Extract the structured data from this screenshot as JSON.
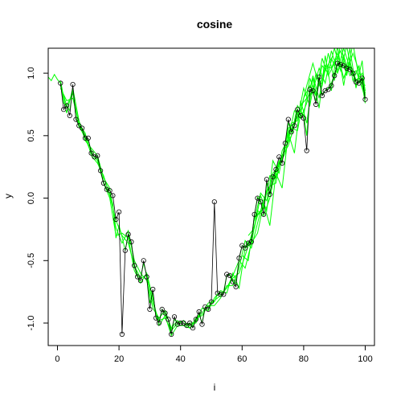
{
  "chart_data": {
    "type": "line",
    "title": "cosine",
    "xlabel": "i",
    "ylabel": "y",
    "xlim": [
      -3,
      103
    ],
    "ylim": [
      -1.18,
      1.2
    ],
    "xticks": [
      0,
      20,
      40,
      60,
      80,
      100
    ],
    "xtick_labels": [
      "0",
      "20",
      "40",
      "60",
      "80",
      "100"
    ],
    "yticks": [
      -1.0,
      -0.5,
      0.0,
      0.5,
      1.0
    ],
    "ytick_labels": [
      "-1.0",
      "-0.5",
      "0.0",
      "0.5",
      "1.0"
    ],
    "colors": {
      "observed": "#000000",
      "bands": "#00ff00"
    },
    "series": [
      {
        "style": "points-and-line",
        "x": [
          1,
          2,
          3,
          4,
          5,
          6,
          7,
          8,
          9,
          10,
          11,
          12,
          13,
          14,
          15,
          16,
          17,
          18,
          19,
          20,
          21,
          22,
          23,
          24,
          25,
          26,
          27,
          28,
          29,
          30,
          31,
          32,
          33,
          34,
          35,
          36,
          37,
          38,
          39,
          40,
          41,
          42,
          43,
          44,
          45,
          46,
          47,
          48,
          49,
          50,
          51,
          52,
          53,
          54,
          55,
          56,
          57,
          58,
          59,
          60,
          61,
          62,
          63,
          64,
          65,
          66,
          67,
          68,
          69,
          70,
          71,
          72,
          73,
          74,
          75,
          76,
          77,
          78,
          79,
          80,
          81,
          82,
          83,
          84,
          85,
          86,
          87,
          88,
          89,
          90,
          91,
          92,
          93,
          94,
          95,
          96,
          97,
          98,
          99,
          100
        ],
        "y": [
          0.92,
          0.71,
          0.74,
          0.66,
          0.91,
          0.63,
          0.58,
          0.56,
          0.48,
          0.48,
          0.36,
          0.33,
          0.34,
          0.22,
          0.12,
          0.07,
          0.06,
          0.02,
          -0.17,
          -0.11,
          -1.09,
          -0.42,
          -0.29,
          -0.35,
          -0.54,
          -0.63,
          -0.66,
          -0.5,
          -0.63,
          -0.89,
          -0.73,
          -0.96,
          -1.0,
          -0.89,
          -0.92,
          -0.97,
          -1.09,
          -0.95,
          -1.01,
          -1.0,
          -1.0,
          -1.02,
          -1.0,
          -1.04,
          -0.97,
          -0.91,
          -1.01,
          -0.87,
          -0.89,
          -0.83,
          -0.03,
          -0.76,
          -0.77,
          -0.77,
          -0.61,
          -0.62,
          -0.67,
          -0.71,
          -0.48,
          -0.38,
          -0.4,
          -0.36,
          -0.35,
          -0.13,
          0.0,
          -0.03,
          -0.13,
          0.15,
          0.03,
          0.17,
          0.23,
          0.33,
          0.28,
          0.44,
          0.63,
          0.53,
          0.58,
          0.71,
          0.66,
          0.64,
          0.38,
          0.87,
          0.86,
          0.75,
          0.97,
          0.82,
          0.86,
          0.87,
          0.9,
          0.98,
          1.08,
          1.07,
          1.06,
          1.04,
          1.03,
          1.0,
          0.93,
          0.92,
          0.96,
          0.79
        ]
      },
      {
        "style": "line",
        "x": [
          -3,
          -2,
          -1,
          0,
          1,
          2,
          3,
          4,
          5,
          6,
          7,
          8,
          9,
          10,
          11,
          12,
          13,
          14,
          15,
          16,
          17,
          18,
          19,
          20,
          21,
          22,
          23,
          24,
          25,
          26,
          27,
          28,
          29,
          30,
          31,
          32,
          33,
          34,
          35,
          36,
          37,
          38,
          39,
          40,
          41,
          42,
          43,
          44,
          45,
          46,
          47,
          48,
          49,
          50,
          51,
          52,
          53,
          54,
          55,
          56,
          57,
          58,
          59,
          60,
          61,
          62,
          63,
          64,
          65,
          66,
          67,
          68,
          69,
          70,
          71,
          72,
          73,
          74,
          75,
          76,
          77,
          78,
          79,
          80,
          81,
          82,
          83,
          84,
          85,
          86,
          87,
          88,
          89,
          90,
          91,
          92,
          93,
          94,
          95,
          96,
          97,
          98,
          99,
          100
        ],
        "y": [
          0.97,
          0.94,
          0.99,
          0.95,
          0.92,
          0.76,
          0.74,
          0.7,
          0.87,
          0.65,
          0.57,
          0.55,
          0.5,
          0.46,
          0.38,
          0.33,
          0.32,
          0.22,
          0.13,
          0.07,
          0.04,
          -0.05,
          -0.32,
          -0.22,
          -0.31,
          -0.42,
          -0.3,
          -0.38,
          -0.53,
          -0.62,
          -0.64,
          -0.52,
          -0.62,
          -0.84,
          -0.76,
          -0.95,
          -0.99,
          -0.89,
          -0.94,
          -0.97,
          -1.05,
          -0.97,
          -1.0,
          -1.0,
          -1.0,
          -1.02,
          -1.01,
          -1.03,
          -0.98,
          -0.93,
          -1.0,
          -0.88,
          -0.87,
          -0.84,
          -0.83,
          -0.77,
          -0.76,
          -0.75,
          -0.62,
          -0.61,
          -0.66,
          -0.69,
          -0.49,
          -0.38,
          -0.39,
          -0.35,
          -0.33,
          -0.14,
          0.01,
          -0.02,
          -0.09,
          0.12,
          0.04,
          0.16,
          0.22,
          0.3,
          0.3,
          0.43,
          0.6,
          0.55,
          0.6,
          0.69,
          0.66,
          0.67,
          0.5,
          0.82,
          0.85,
          0.78,
          0.93,
          0.83,
          0.86,
          0.88,
          0.92,
          0.99,
          1.07,
          1.06,
          1.05,
          1.04,
          1.03,
          1.01,
          0.95,
          0.93,
          0.95,
          0.8
        ]
      },
      {
        "style": "line",
        "x": [
          1,
          3,
          5,
          7,
          9,
          11,
          13,
          15,
          17,
          19,
          21,
          23,
          25,
          27,
          29,
          31,
          33,
          35,
          37,
          39,
          41,
          43,
          45,
          47,
          49,
          51,
          53,
          55,
          57,
          59,
          61,
          63,
          65,
          67,
          69,
          71,
          73,
          75,
          77,
          79,
          81,
          83,
          85,
          87,
          89,
          91,
          93,
          95,
          97,
          99,
          100
        ],
        "y": [
          0.9,
          0.74,
          0.84,
          0.58,
          0.48,
          0.36,
          0.3,
          0.12,
          0.0,
          -0.3,
          -0.28,
          -0.32,
          -0.58,
          -0.68,
          -0.6,
          -0.8,
          -1.02,
          -0.94,
          -1.1,
          -1.02,
          -1.02,
          -1.0,
          -1.0,
          -0.88,
          -0.9,
          -0.8,
          -0.74,
          -0.76,
          -0.6,
          -0.72,
          -0.4,
          -0.36,
          -0.1,
          -0.14,
          0.0,
          0.24,
          0.3,
          0.56,
          0.6,
          0.7,
          0.9,
          1.08,
          0.9,
          1.02,
          1.12,
          1.0,
          1.14,
          0.98,
          1.02,
          0.88,
          0.8
        ]
      },
      {
        "style": "line",
        "x": [
          1,
          3,
          5,
          7,
          9,
          11,
          13,
          15,
          17,
          19,
          21,
          23,
          25,
          27,
          29,
          31,
          33,
          35,
          37,
          39,
          41,
          43,
          45,
          47,
          49,
          51,
          53,
          55,
          57,
          59,
          61,
          63,
          65,
          67,
          69,
          71,
          73,
          75,
          77,
          79,
          81,
          83,
          85,
          87,
          89,
          91,
          93,
          95,
          97,
          99,
          100
        ],
        "y": [
          0.94,
          0.68,
          0.88,
          0.62,
          0.46,
          0.4,
          0.34,
          0.16,
          0.08,
          -0.24,
          -0.36,
          -0.26,
          -0.5,
          -0.6,
          -0.66,
          -0.88,
          -0.96,
          -0.9,
          -1.04,
          -0.98,
          -1.02,
          -1.04,
          -0.96,
          -0.94,
          -0.86,
          -0.86,
          -0.8,
          -0.7,
          -0.7,
          -0.56,
          -0.34,
          -0.4,
          -0.2,
          -0.02,
          0.1,
          0.12,
          0.38,
          0.48,
          0.7,
          0.64,
          0.76,
          0.98,
          0.8,
          1.06,
          1.04,
          1.16,
          0.96,
          1.1,
          0.9,
          0.96,
          0.84
        ]
      },
      {
        "style": "line",
        "x": [
          1,
          3,
          5,
          7,
          9,
          11,
          13,
          15,
          17,
          19,
          21,
          23,
          25,
          27,
          29,
          31,
          33,
          35,
          37,
          39,
          41,
          43,
          45,
          47,
          49,
          51,
          53,
          55,
          57,
          59,
          61,
          63,
          65,
          67,
          69,
          71,
          73,
          75,
          77,
          79,
          81,
          83,
          85,
          87,
          89,
          91,
          93,
          95,
          97,
          99,
          100
        ],
        "y": [
          0.88,
          0.78,
          0.8,
          0.6,
          0.52,
          0.34,
          0.28,
          0.18,
          0.02,
          -0.18,
          -0.3,
          -0.36,
          -0.54,
          -0.64,
          -0.62,
          -0.84,
          -0.98,
          -0.96,
          -1.06,
          -1.0,
          -0.98,
          -1.04,
          -0.98,
          -0.92,
          -0.84,
          -0.82,
          -0.78,
          -0.72,
          -0.64,
          -0.6,
          -0.46,
          -0.3,
          -0.14,
          -0.08,
          0.18,
          0.16,
          0.34,
          0.42,
          0.58,
          0.74,
          0.8,
          0.86,
          1.04,
          0.92,
          1.18,
          1.02,
          1.2,
          1.04,
          0.94,
          1.0,
          0.86
        ]
      },
      {
        "style": "line",
        "x": [
          55,
          57,
          59,
          61,
          63,
          65,
          67,
          69,
          71,
          73,
          75,
          77,
          79,
          81,
          83,
          85,
          87,
          89,
          91,
          93,
          95,
          97,
          99,
          100
        ],
        "y": [
          -0.72,
          -0.62,
          -0.5,
          -0.56,
          -0.36,
          -0.28,
          -0.04,
          -0.22,
          0.2,
          0.08,
          0.52,
          0.36,
          0.78,
          0.6,
          0.96,
          0.72,
          1.14,
          0.86,
          1.22,
          0.9,
          1.2,
          0.88,
          1.1,
          0.82
        ]
      },
      {
        "style": "line",
        "x": [
          60,
          62,
          64,
          66,
          68,
          70,
          72,
          74,
          76,
          78,
          80,
          82,
          84,
          86,
          88,
          90,
          92,
          94,
          96,
          98,
          100
        ],
        "y": [
          -0.46,
          -0.5,
          -0.16,
          -0.1,
          0.06,
          0.12,
          0.28,
          0.4,
          0.5,
          0.74,
          0.66,
          0.96,
          0.82,
          1.06,
          1.0,
          1.2,
          1.02,
          1.22,
          0.94,
          1.06,
          0.76
        ]
      },
      {
        "style": "line",
        "x": [
          62,
          64,
          66,
          68,
          70,
          72,
          74,
          76,
          78,
          80,
          82,
          84,
          86,
          88,
          90,
          92,
          94,
          96,
          98,
          100
        ],
        "y": [
          -0.3,
          -0.24,
          0.02,
          -0.1,
          0.3,
          0.2,
          0.44,
          0.6,
          0.62,
          0.88,
          0.74,
          1.0,
          0.9,
          1.16,
          0.94,
          1.24,
          1.0,
          1.16,
          1.02,
          0.86
        ]
      },
      {
        "style": "line",
        "x": [
          64,
          66,
          68,
          70,
          72,
          74,
          76,
          78,
          80,
          82,
          84,
          86,
          88,
          90,
          92,
          94,
          96,
          98,
          100
        ],
        "y": [
          -0.18,
          0.04,
          -0.02,
          0.2,
          0.26,
          0.36,
          0.56,
          0.54,
          0.8,
          0.9,
          0.82,
          1.12,
          0.98,
          1.08,
          1.18,
          0.98,
          1.24,
          0.96,
          0.9
        ]
      }
    ]
  }
}
